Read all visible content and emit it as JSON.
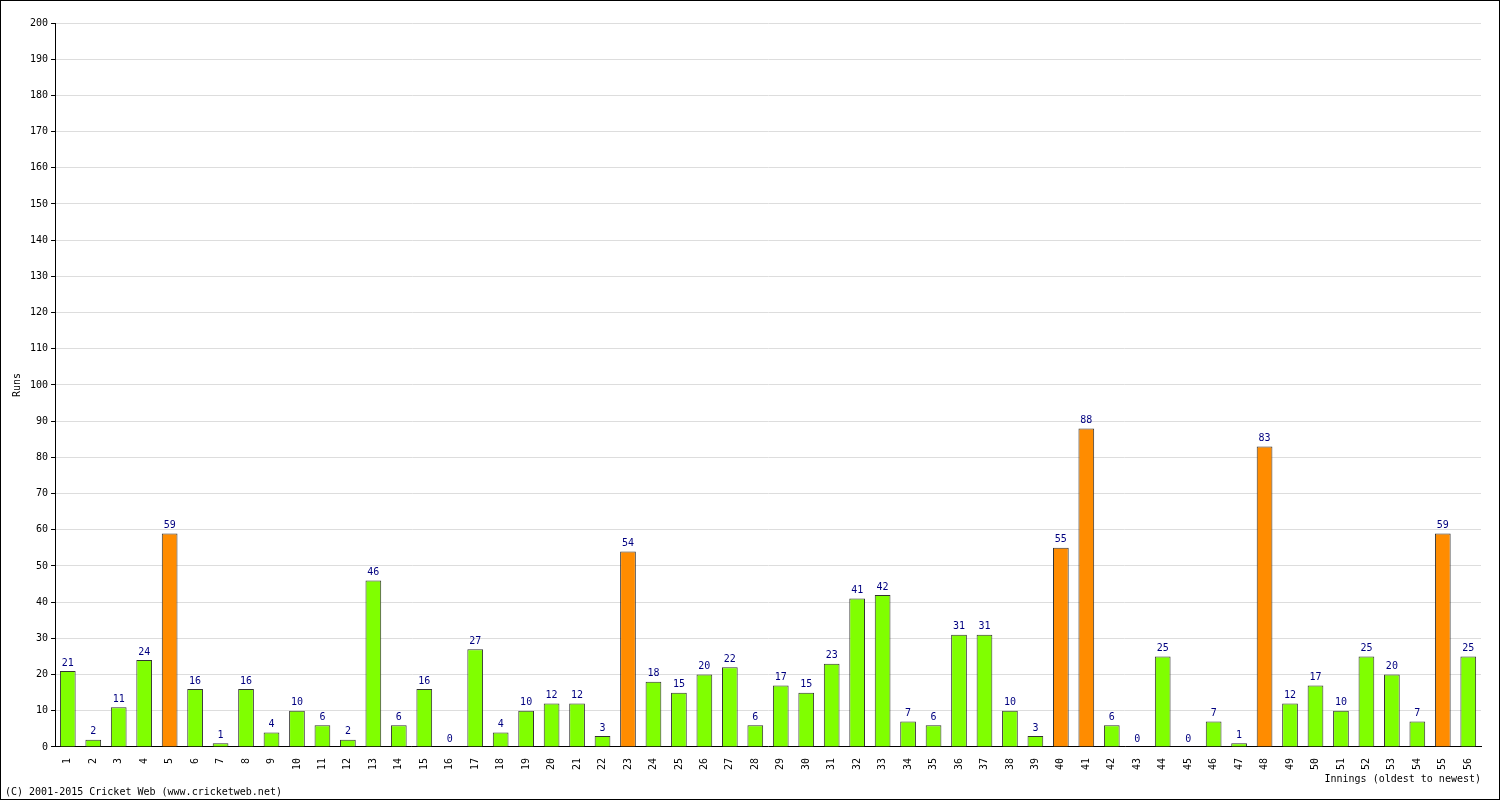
{
  "chart_data": {
    "type": "bar",
    "y_label": "Runs",
    "x_label": "Innings (oldest to newest)",
    "annotations": [
      "(C) 2001-2015 Cricket Web (www.cricketweb.net)"
    ],
    "categories": [
      "1",
      "2",
      "3",
      "4",
      "5",
      "6",
      "7",
      "8",
      "9",
      "10",
      "11",
      "12",
      "13",
      "14",
      "15",
      "16",
      "17",
      "18",
      "19",
      "20",
      "21",
      "22",
      "23",
      "24",
      "25",
      "26",
      "27",
      "28",
      "29",
      "30",
      "31",
      "32",
      "33",
      "34",
      "35",
      "36",
      "37",
      "38",
      "39",
      "40",
      "41",
      "42",
      "43",
      "44",
      "45",
      "46",
      "47",
      "48",
      "49",
      "50",
      "51",
      "52",
      "53",
      "54",
      "55",
      "56"
    ],
    "values": [
      21,
      2,
      11,
      24,
      59,
      16,
      1,
      16,
      4,
      10,
      6,
      2,
      46,
      6,
      16,
      0,
      27,
      4,
      10,
      12,
      12,
      3,
      54,
      18,
      15,
      20,
      22,
      6,
      17,
      15,
      23,
      41,
      42,
      7,
      6,
      31,
      31,
      10,
      3,
      55,
      88,
      6,
      0,
      25,
      0,
      7,
      1,
      83,
      12,
      17,
      10,
      25,
      20,
      7,
      59,
      25
    ],
    "colors": [
      "#80ff00",
      "#80ff00",
      "#80ff00",
      "#80ff00",
      "#ff8c00",
      "#80ff00",
      "#80ff00",
      "#80ff00",
      "#80ff00",
      "#80ff00",
      "#80ff00",
      "#80ff00",
      "#80ff00",
      "#80ff00",
      "#80ff00",
      "#80ff00",
      "#80ff00",
      "#80ff00",
      "#80ff00",
      "#80ff00",
      "#80ff00",
      "#80ff00",
      "#ff8c00",
      "#80ff00",
      "#80ff00",
      "#80ff00",
      "#80ff00",
      "#80ff00",
      "#80ff00",
      "#80ff00",
      "#80ff00",
      "#80ff00",
      "#80ff00",
      "#80ff00",
      "#80ff00",
      "#80ff00",
      "#80ff00",
      "#80ff00",
      "#80ff00",
      "#ff8c00",
      "#ff8c00",
      "#80ff00",
      "#80ff00",
      "#80ff00",
      "#80ff00",
      "#80ff00",
      "#80ff00",
      "#ff8c00",
      "#80ff00",
      "#80ff00",
      "#80ff00",
      "#80ff00",
      "#80ff00",
      "#80ff00",
      "#ff8c00",
      "#80ff00"
    ],
    "ylim": [
      0,
      200
    ],
    "yticks": [
      0,
      10,
      20,
      30,
      40,
      50,
      60,
      70,
      80,
      90,
      100,
      110,
      120,
      130,
      140,
      150,
      160,
      170,
      180,
      190,
      200
    ],
    "grid": true,
    "data_labels": true
  }
}
